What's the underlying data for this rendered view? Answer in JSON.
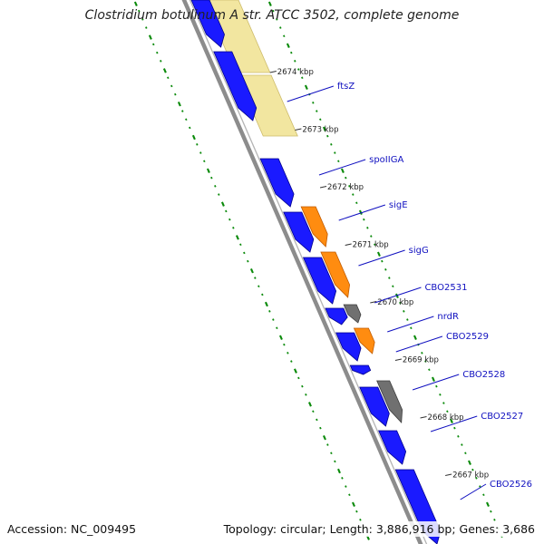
{
  "title": "Clostridium botulinum A str. ATCC 3502, complete genome",
  "footer": {
    "accession": "Accession: NC_009495",
    "summary": "Topology: circular; Length: 3,886,916 bp; Genes: 3,686"
  },
  "colors": {
    "cds": "#1a1aff",
    "cds_edge": "#00008b",
    "highlight": "#f2e6a0",
    "orange": "#ff8c10",
    "gray": "#707070",
    "backbone": "#8c8c8c",
    "dots": "#0a8a0a",
    "label": "#1010c0"
  },
  "scale_ticks": [
    "2674 kbp",
    "2673 kbp",
    "2672 kbp",
    "2671 kbp",
    "2670 kbp",
    "2669 kbp",
    "2668 kbp",
    "2667 kbp"
  ],
  "gene_labels": [
    "ftsZ",
    "spoIIGA",
    "sigE",
    "sigG",
    "CBO2531",
    "nrdR",
    "CBO2529",
    "CBO2528",
    "CBO2527",
    "CBO2526"
  ],
  "features": [
    {
      "color": "cds",
      "s": 0,
      "e": 52
    },
    {
      "color": "cds",
      "s": 57,
      "e": 133
    },
    {
      "color": "cds",
      "s": 175,
      "e": 228
    },
    {
      "color": "cds",
      "s": 234,
      "e": 278
    },
    {
      "color": "cds",
      "s": 284,
      "e": 335
    },
    {
      "color": "cds",
      "s": 340,
      "e": 358
    },
    {
      "color": "cds",
      "s": 367,
      "e": 398
    },
    {
      "color": "cds",
      "s": 403,
      "e": 413
    },
    {
      "color": "cds",
      "s": 427,
      "e": 470
    },
    {
      "color": "cds",
      "s": 475,
      "e": 512
    },
    {
      "color": "cds",
      "s": 518,
      "e": 600
    },
    {
      "color": "orange",
      "s": 228,
      "e": 272
    },
    {
      "color": "orange",
      "s": 278,
      "e": 328
    },
    {
      "color": "orange",
      "s": 362,
      "e": 390
    },
    {
      "color": "gray",
      "s": 336,
      "e": 356
    },
    {
      "color": "gray",
      "s": 420,
      "e": 466
    }
  ],
  "highlights": [
    {
      "s": 0,
      "e": 80
    },
    {
      "s": 83,
      "e": 150
    }
  ]
}
